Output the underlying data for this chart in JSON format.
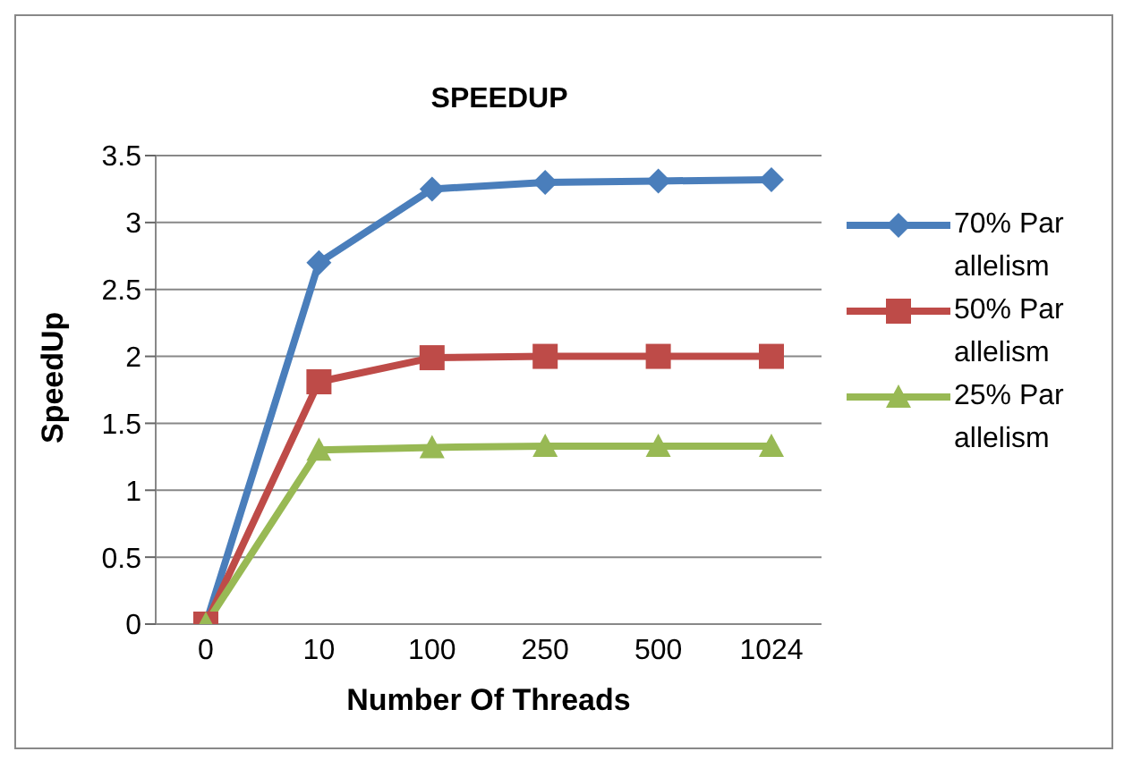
{
  "chart_data": {
    "type": "line",
    "title": "SPEEDUP",
    "xlabel": "Number Of Threads",
    "ylabel": "SpeedUp",
    "categories": [
      "0",
      "10",
      "100",
      "250",
      "500",
      "1024"
    ],
    "series": [
      {
        "name": "70% Parallelism",
        "color": "#4a7ebb",
        "marker": "diamond",
        "values": [
          0,
          2.7,
          3.25,
          3.3,
          3.31,
          3.32
        ]
      },
      {
        "name": "50% Parallelism",
        "color": "#be4b48",
        "marker": "square",
        "values": [
          0,
          1.81,
          1.99,
          2.0,
          2.0,
          2.0
        ]
      },
      {
        "name": "25% Parallelism",
        "color": "#98b954",
        "marker": "triangle",
        "values": [
          0,
          1.3,
          1.32,
          1.33,
          1.33,
          1.33
        ]
      }
    ],
    "ylim": [
      0,
      3.5
    ],
    "yticks": [
      0,
      0.5,
      1,
      1.5,
      2,
      2.5,
      3,
      3.5
    ],
    "grid": "y",
    "legend": "right"
  }
}
